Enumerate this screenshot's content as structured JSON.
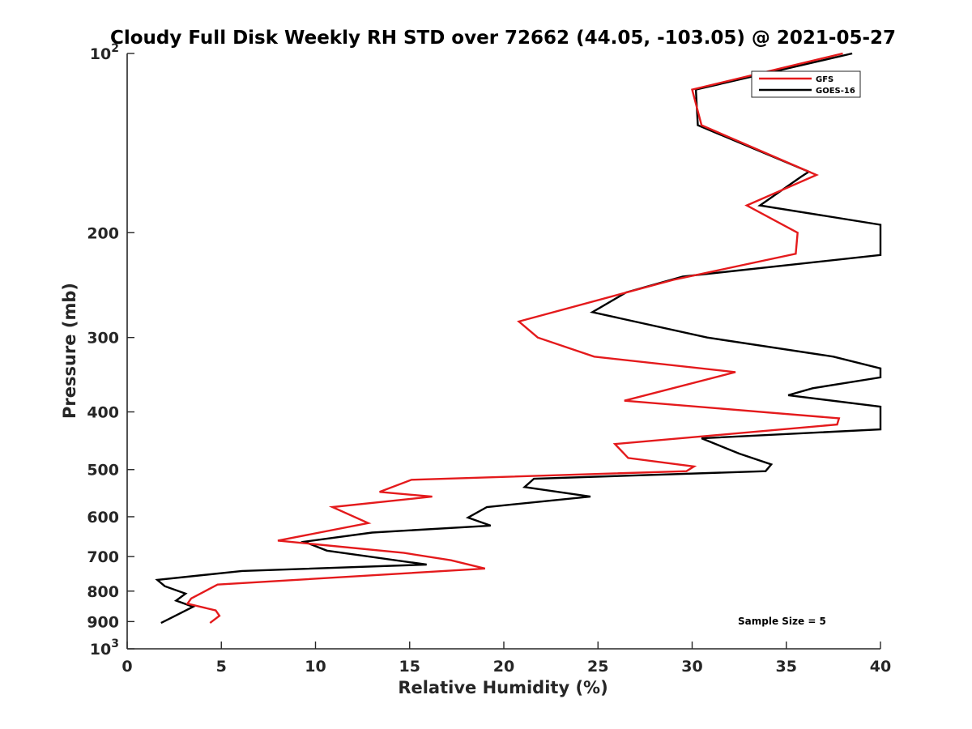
{
  "chart_data": {
    "type": "line",
    "title": "Cloudy Full Disk Weekly RH STD over 72662 (44.05, -103.05) @ 2021-05-27",
    "xlabel": "Relative Humidity (%)",
    "ylabel": "Pressure (mb)",
    "xlim": [
      0,
      40
    ],
    "ylim": [
      100,
      1000
    ],
    "yscale": "log",
    "y_reversed": true,
    "x_ticks": [
      "0",
      "5",
      "10",
      "15",
      "20",
      "25",
      "30",
      "35",
      "40"
    ],
    "y_ticks": [
      {
        "value": 100,
        "label": "10",
        "sup": "2"
      },
      {
        "value": 200,
        "label": "200",
        "sup": ""
      },
      {
        "value": 300,
        "label": "300",
        "sup": ""
      },
      {
        "value": 400,
        "label": "400",
        "sup": ""
      },
      {
        "value": 500,
        "label": "500",
        "sup": ""
      },
      {
        "value": 600,
        "label": "600",
        "sup": ""
      },
      {
        "value": 700,
        "label": "700",
        "sup": ""
      },
      {
        "value": 800,
        "label": "800",
        "sup": ""
      },
      {
        "value": 900,
        "label": "900",
        "sup": ""
      },
      {
        "value": 1000,
        "label": "10",
        "sup": "3"
      }
    ],
    "grid": false,
    "legend_position": "top-right",
    "annotation": "Sample Size = 5",
    "series": [
      {
        "name": "GFS",
        "color": "#e41a1c",
        "points": [
          [
            38.0,
            100
          ],
          [
            30.0,
            115
          ],
          [
            30.5,
            132
          ],
          [
            36.6,
            160
          ],
          [
            32.9,
            180
          ],
          [
            35.6,
            200
          ],
          [
            35.5,
            217
          ],
          [
            29.0,
            240
          ],
          [
            20.8,
            282
          ],
          [
            21.8,
            300
          ],
          [
            24.8,
            323
          ],
          [
            32.3,
            343
          ],
          [
            26.4,
            383
          ],
          [
            37.8,
            410
          ],
          [
            37.7,
            420
          ],
          [
            25.9,
            453
          ],
          [
            26.6,
            478
          ],
          [
            30.1,
            494
          ],
          [
            29.7,
            503
          ],
          [
            15.1,
            520
          ],
          [
            13.4,
            545
          ],
          [
            16.2,
            555
          ],
          [
            10.9,
            578
          ],
          [
            12.8,
            615
          ],
          [
            8.0,
            658
          ],
          [
            14.7,
            690
          ],
          [
            17.2,
            710
          ],
          [
            19.0,
            733
          ],
          [
            4.8,
            780
          ],
          [
            3.4,
            823
          ],
          [
            3.2,
            840
          ],
          [
            4.7,
            862
          ],
          [
            4.9,
            880
          ],
          [
            4.4,
            905
          ]
        ]
      },
      {
        "name": "GOES-16",
        "color": "#000000",
        "points": [
          [
            38.5,
            100
          ],
          [
            30.2,
            115
          ],
          [
            30.3,
            132
          ],
          [
            36.2,
            158
          ],
          [
            35.8,
            161
          ],
          [
            33.6,
            180
          ],
          [
            40.0,
            194
          ],
          [
            40.0,
            218
          ],
          [
            29.5,
            237
          ],
          [
            26.5,
            252
          ],
          [
            24.7,
            272
          ],
          [
            30.8,
            300
          ],
          [
            37.5,
            323
          ],
          [
            40.0,
            338
          ],
          [
            40.0,
            350
          ],
          [
            36.4,
            365
          ],
          [
            35.1,
            375
          ],
          [
            40.0,
            392
          ],
          [
            40.0,
            428
          ],
          [
            30.5,
            443
          ],
          [
            32.5,
            470
          ],
          [
            34.2,
            490
          ],
          [
            33.9,
            503
          ],
          [
            21.6,
            518
          ],
          [
            21.1,
            535
          ],
          [
            24.6,
            555
          ],
          [
            19.1,
            578
          ],
          [
            18.1,
            602
          ],
          [
            19.3,
            621
          ],
          [
            13.0,
            638
          ],
          [
            9.4,
            661
          ],
          [
            10.6,
            684
          ],
          [
            15.9,
            722
          ],
          [
            6.1,
            740
          ],
          [
            1.6,
            766
          ],
          [
            2.0,
            785
          ],
          [
            3.1,
            808
          ],
          [
            2.6,
            830
          ],
          [
            3.5,
            850
          ],
          [
            1.8,
            905
          ]
        ]
      }
    ]
  }
}
